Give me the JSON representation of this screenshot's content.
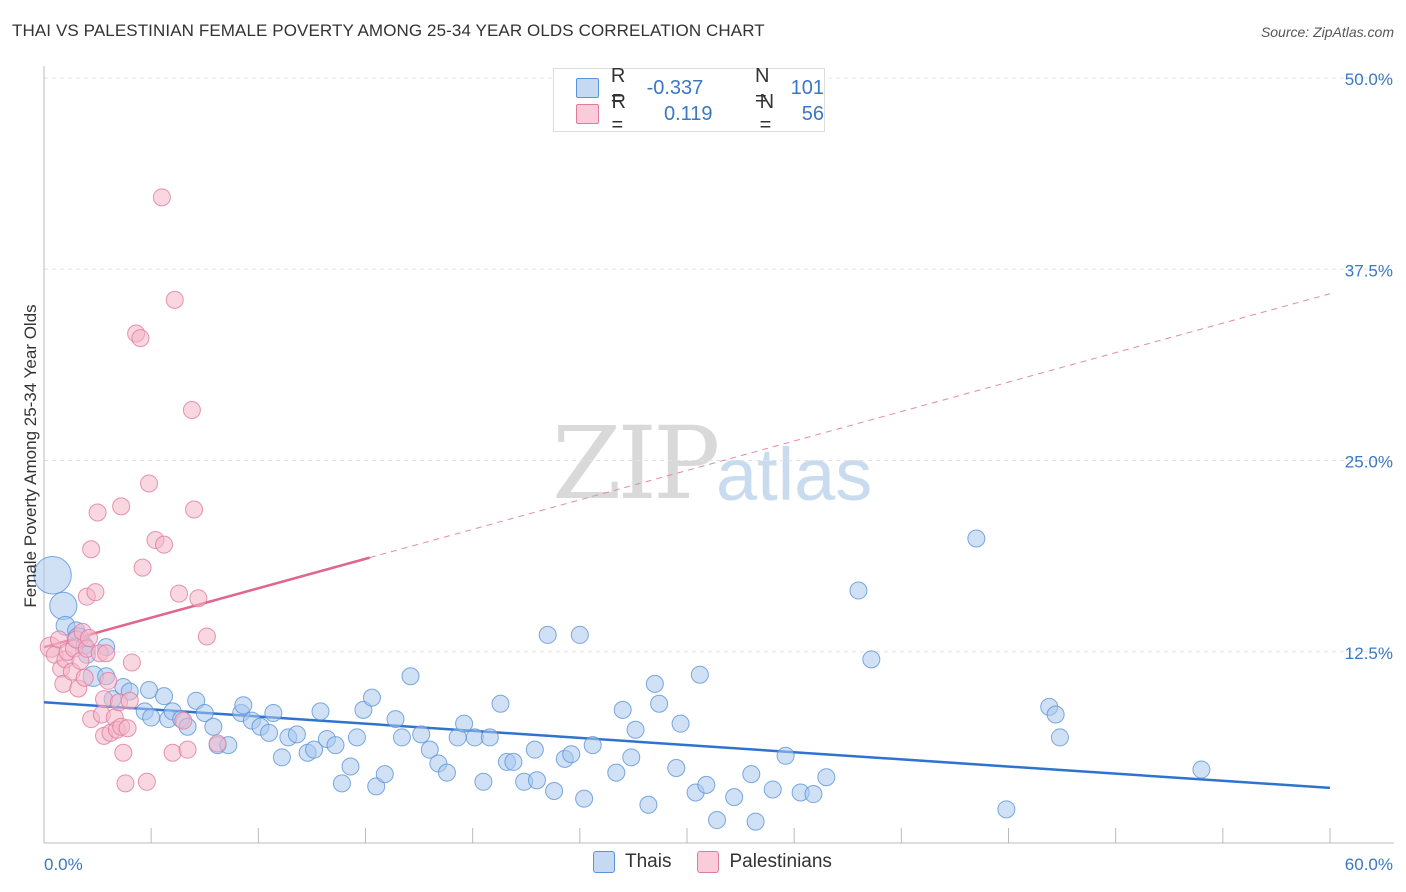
{
  "title": "THAI VS PALESTINIAN FEMALE POVERTY AMONG 25-34 YEAR OLDS CORRELATION CHART",
  "source": "Source: ZipAtlas.com",
  "watermark": {
    "zip": "ZIP",
    "atlas": "atlas"
  },
  "legend": {
    "rows": [
      {
        "r_label": "R =",
        "r_value": "-0.337",
        "n_label": "N =",
        "n_value": "101",
        "color": "#a9c8ee"
      },
      {
        "r_label": "R =",
        "r_value": "0.119",
        "n_label": "N =",
        "n_value": "56",
        "color": "#f4b6c8"
      }
    ]
  },
  "bottom_legend": [
    {
      "label": "Thais",
      "color": "#a9c8ee"
    },
    {
      "label": "Palestinians",
      "color": "#f4b6c8"
    }
  ],
  "chart_data": {
    "type": "scatter",
    "title": "THAI VS PALESTINIAN FEMALE POVERTY AMONG 25-34 YEAR OLDS CORRELATION CHART",
    "xlabel": "",
    "ylabel": "Female Poverty Among 25-34 Year Olds",
    "xlim": [
      0,
      60
    ],
    "ylim": [
      0,
      50
    ],
    "x_tick_labels": [
      "0.0%",
      "60.0%"
    ],
    "y_ticks": [
      12.5,
      25,
      37.5,
      50
    ],
    "y_tick_labels": [
      "12.5%",
      "25.0%",
      "37.5%",
      "50.0%"
    ],
    "grid": true,
    "legend_position": "top-center",
    "series": [
      {
        "name": "Thais",
        "color": "#5b93d8",
        "fill": "#a9c8ee",
        "trend": {
          "x": [
            0,
            60
          ],
          "y": [
            9.2,
            3.6
          ],
          "style": "solid"
        },
        "points": [
          [
            0.4,
            17.5,
            2.2
          ],
          [
            0.9,
            15.5,
            1.6
          ],
          [
            1.0,
            14.2,
            1.1
          ],
          [
            1.5,
            13.9,
            1.0
          ],
          [
            1.6,
            13.4,
            1.2
          ],
          [
            1.9,
            12.9,
            1.0
          ],
          [
            2.0,
            12.3,
            1.0
          ],
          [
            2.3,
            10.9,
            1.2
          ],
          [
            2.9,
            12.8,
            1.0
          ],
          [
            2.9,
            10.9,
            1.0
          ],
          [
            3.2,
            9.4,
            1.0
          ],
          [
            3.7,
            10.2,
            1.0
          ],
          [
            4.0,
            9.9,
            1.0
          ],
          [
            4.7,
            8.6,
            1.0
          ],
          [
            4.9,
            10.0,
            1.0
          ],
          [
            5.0,
            8.2,
            1.0
          ],
          [
            5.6,
            9.6,
            1.0
          ],
          [
            5.8,
            8.1,
            1.0
          ],
          [
            6.0,
            8.6,
            1.0
          ],
          [
            6.4,
            8.1,
            1.0
          ],
          [
            6.7,
            7.6,
            1.0
          ],
          [
            7.1,
            9.3,
            1.0
          ],
          [
            7.5,
            8.5,
            1.0
          ],
          [
            7.9,
            7.6,
            1.0
          ],
          [
            8.1,
            6.4,
            1.0
          ],
          [
            8.6,
            6.4,
            1.0
          ],
          [
            9.2,
            8.5,
            1.0
          ],
          [
            9.3,
            9.0,
            1.0
          ],
          [
            9.7,
            8.0,
            1.0
          ],
          [
            10.1,
            7.6,
            1.0
          ],
          [
            10.5,
            7.2,
            1.0
          ],
          [
            10.7,
            8.5,
            1.0
          ],
          [
            11.1,
            5.6,
            1.0
          ],
          [
            11.4,
            6.9,
            1.0
          ],
          [
            11.8,
            7.1,
            1.0
          ],
          [
            12.3,
            5.9,
            1.0
          ],
          [
            12.6,
            6.1,
            1.0
          ],
          [
            12.9,
            8.6,
            1.0
          ],
          [
            13.2,
            6.8,
            1.0
          ],
          [
            13.6,
            6.4,
            1.0
          ],
          [
            13.9,
            3.9,
            1.0
          ],
          [
            14.3,
            5.0,
            1.0
          ],
          [
            14.6,
            6.9,
            1.0
          ],
          [
            14.9,
            8.7,
            1.0
          ],
          [
            15.3,
            9.5,
            1.0
          ],
          [
            15.5,
            3.7,
            1.0
          ],
          [
            15.9,
            4.5,
            1.0
          ],
          [
            16.4,
            8.1,
            1.0
          ],
          [
            16.7,
            6.9,
            1.0
          ],
          [
            17.1,
            10.9,
            1.0
          ],
          [
            17.6,
            7.1,
            1.0
          ],
          [
            18.0,
            6.1,
            1.0
          ],
          [
            18.4,
            5.2,
            1.0
          ],
          [
            18.8,
            4.6,
            1.0
          ],
          [
            19.3,
            6.9,
            1.0
          ],
          [
            19.6,
            7.8,
            1.0
          ],
          [
            20.1,
            6.9,
            1.0
          ],
          [
            20.5,
            4.0,
            1.0
          ],
          [
            20.8,
            6.9,
            1.0
          ],
          [
            21.3,
            9.1,
            1.0
          ],
          [
            21.6,
            5.3,
            1.0
          ],
          [
            21.9,
            5.3,
            1.0
          ],
          [
            22.4,
            4.0,
            1.0
          ],
          [
            22.9,
            6.1,
            1.0
          ],
          [
            23.0,
            4.1,
            1.0
          ],
          [
            23.5,
            13.6,
            1.0
          ],
          [
            23.8,
            3.4,
            1.0
          ],
          [
            24.3,
            5.5,
            1.0
          ],
          [
            24.6,
            5.8,
            1.0
          ],
          [
            25.0,
            13.6,
            1.0
          ],
          [
            25.2,
            2.9,
            1.0
          ],
          [
            25.6,
            6.4,
            1.0
          ],
          [
            26.7,
            4.6,
            1.0
          ],
          [
            27.0,
            8.7,
            1.0
          ],
          [
            27.4,
            5.6,
            1.0
          ],
          [
            27.6,
            7.4,
            1.0
          ],
          [
            28.2,
            2.5,
            1.0
          ],
          [
            28.5,
            10.4,
            1.0
          ],
          [
            28.7,
            9.1,
            1.0
          ],
          [
            29.5,
            4.9,
            1.0
          ],
          [
            29.7,
            7.8,
            1.0
          ],
          [
            30.4,
            3.3,
            1.0
          ],
          [
            30.6,
            11.0,
            1.0
          ],
          [
            30.9,
            3.8,
            1.0
          ],
          [
            31.4,
            1.5,
            1.0
          ],
          [
            32.2,
            3.0,
            1.0
          ],
          [
            33.0,
            4.5,
            1.0
          ],
          [
            33.2,
            1.4,
            1.0
          ],
          [
            34.0,
            3.5,
            1.0
          ],
          [
            34.6,
            5.7,
            1.0
          ],
          [
            35.3,
            3.3,
            1.0
          ],
          [
            35.9,
            3.2,
            1.0
          ],
          [
            36.5,
            4.3,
            1.0
          ],
          [
            38.0,
            16.5,
            1.0
          ],
          [
            38.6,
            12.0,
            1.0
          ],
          [
            43.5,
            19.9,
            1.0
          ],
          [
            44.9,
            2.2,
            1.0
          ],
          [
            46.9,
            8.9,
            1.0
          ],
          [
            47.2,
            8.4,
            1.0
          ],
          [
            47.4,
            6.9,
            1.0
          ],
          [
            54.0,
            4.8,
            1.0
          ]
        ]
      },
      {
        "name": "Palestinians",
        "color": "#e07a9e",
        "fill": "#f4b6c8",
        "trend": {
          "x": [
            0,
            60
          ],
          "y": [
            12.8,
            35.9
          ],
          "solid_until_x": 15.2,
          "style": "solid-then-dashed"
        },
        "points": [
          [
            0.3,
            12.8,
            1.2
          ],
          [
            0.5,
            12.3,
            1.0
          ],
          [
            0.7,
            13.3,
            1.0
          ],
          [
            0.8,
            11.4,
            1.0
          ],
          [
            0.9,
            10.4,
            1.0
          ],
          [
            1.0,
            12.0,
            1.0
          ],
          [
            1.1,
            12.5,
            1.0
          ],
          [
            1.3,
            11.2,
            1.0
          ],
          [
            1.4,
            12.7,
            1.0
          ],
          [
            1.5,
            13.3,
            1.0
          ],
          [
            1.6,
            10.1,
            1.0
          ],
          [
            1.7,
            11.9,
            1.0
          ],
          [
            1.8,
            13.8,
            1.0
          ],
          [
            1.9,
            10.8,
            1.0
          ],
          [
            2.0,
            16.1,
            1.0
          ],
          [
            2.0,
            12.7,
            1.0
          ],
          [
            2.1,
            13.4,
            1.0
          ],
          [
            2.2,
            19.2,
            1.0
          ],
          [
            2.2,
            8.1,
            1.0
          ],
          [
            2.4,
            16.4,
            1.0
          ],
          [
            2.5,
            21.6,
            1.0
          ],
          [
            2.6,
            12.4,
            1.0
          ],
          [
            2.7,
            8.4,
            1.0
          ],
          [
            2.8,
            7.0,
            1.0
          ],
          [
            2.8,
            9.4,
            1.0
          ],
          [
            2.9,
            12.4,
            1.0
          ],
          [
            3.0,
            10.6,
            1.0
          ],
          [
            3.1,
            7.2,
            1.0
          ],
          [
            3.3,
            8.2,
            1.0
          ],
          [
            3.4,
            7.4,
            1.0
          ],
          [
            3.5,
            9.2,
            1.0
          ],
          [
            3.6,
            22.0,
            1.0
          ],
          [
            3.6,
            7.6,
            1.0
          ],
          [
            3.7,
            5.9,
            1.0
          ],
          [
            3.8,
            3.9,
            1.0
          ],
          [
            3.9,
            7.5,
            1.0
          ],
          [
            4.0,
            9.3,
            1.0
          ],
          [
            4.1,
            11.8,
            1.0
          ],
          [
            4.3,
            33.3,
            1.0
          ],
          [
            4.5,
            33.0,
            1.0
          ],
          [
            4.6,
            18.0,
            1.0
          ],
          [
            4.8,
            4.0,
            1.0
          ],
          [
            4.9,
            23.5,
            1.0
          ],
          [
            5.2,
            19.8,
            1.0
          ],
          [
            5.5,
            42.2,
            1.0
          ],
          [
            5.6,
            19.5,
            1.0
          ],
          [
            6.0,
            5.9,
            1.0
          ],
          [
            6.1,
            35.5,
            1.0
          ],
          [
            6.3,
            16.3,
            1.0
          ],
          [
            6.5,
            8.0,
            1.0
          ],
          [
            6.7,
            6.1,
            1.0
          ],
          [
            6.9,
            28.3,
            1.0
          ],
          [
            7.0,
            21.8,
            1.0
          ],
          [
            7.2,
            16.0,
            1.0
          ],
          [
            7.6,
            13.5,
            1.0
          ],
          [
            8.1,
            6.5,
            1.0
          ]
        ]
      }
    ]
  }
}
